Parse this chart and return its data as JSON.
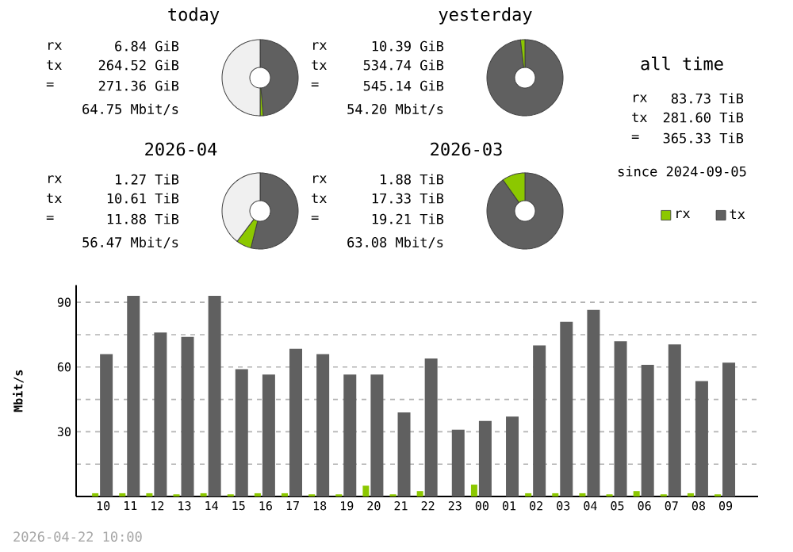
{
  "chart_data": [
    {
      "type": "donut",
      "title": "today",
      "categories": [
        null,
        null,
        null
      ],
      "values": [
        48.7,
        1.3,
        50
      ],
      "colors": [
        "#606060",
        "#8cc800",
        "#f0f0f0"
      ],
      "annotations": [
        "rx",
        "6.84 GiB",
        "tx",
        "264.52 GiB",
        "=",
        "271.36 GiB",
        "64.75 Mbit/s"
      ]
    },
    {
      "type": "donut",
      "title": "yesterday",
      "categories": [
        null,
        null
      ],
      "values": [
        98.1,
        1.9
      ],
      "colors": [
        "#606060",
        "#8cc800"
      ],
      "annotations": [
        "rx",
        "10.39 GiB",
        "tx",
        "534.74 GiB",
        "=",
        "545.14 GiB",
        "54.20 Mbit/s"
      ]
    },
    {
      "type": "other",
      "title": "all time",
      "annotations": [
        "rx",
        "83.73 TiB",
        "tx",
        "281.60 TiB",
        "=",
        "365.33 TiB",
        "since 2024-09-05"
      ]
    },
    {
      "type": "donut",
      "title": "2026-04",
      "categories": [
        null,
        null,
        null
      ],
      "values": [
        53.9,
        6.4,
        39.7
      ],
      "colors": [
        "#606060",
        "#8cc800",
        "#f0f0f0"
      ],
      "annotations": [
        "rx",
        "1.27 TiB",
        "tx",
        "10.61 TiB",
        "=",
        "11.88 TiB",
        "56.47 Mbit/s"
      ]
    },
    {
      "type": "donut",
      "title": "2026-03",
      "categories": [
        null,
        null
      ],
      "values": [
        90.2,
        9.8
      ],
      "colors": [
        "#606060",
        "#8cc800"
      ],
      "annotations": [
        "rx",
        "1.88 TiB",
        "tx",
        "17.33 TiB",
        "=",
        "19.21 TiB",
        "63.08 Mbit/s"
      ]
    },
    {
      "type": "bar",
      "ylabel": "Mbit/s",
      "categories": [
        "10",
        "11",
        "12",
        "13",
        "14",
        "15",
        "16",
        "17",
        "18",
        "19",
        "20",
        "21",
        "22",
        "23",
        "00",
        "01",
        "02",
        "03",
        "04",
        "05",
        "06",
        "07",
        "08",
        "09"
      ],
      "series": [
        {
          "name": "rx",
          "color": "#8cc800",
          "values": [
            1.5,
            1.5,
            1.5,
            1,
            1.5,
            1,
            1.5,
            1.5,
            1,
            1,
            5,
            1,
            2.5,
            0,
            5.5,
            0,
            1.5,
            1.5,
            1.5,
            1,
            2.5,
            1,
            1.5,
            1
          ]
        },
        {
          "name": "tx",
          "color": "#606060",
          "values": [
            66,
            93,
            76,
            74,
            93,
            59,
            56.5,
            68.5,
            66,
            56.5,
            56.5,
            39,
            64,
            31,
            35,
            37,
            70,
            81,
            86.5,
            72,
            61,
            70.5,
            53.5,
            62
          ]
        }
      ],
      "ylim": [
        0,
        98
      ],
      "yticks": [
        {
          "value": 15,
          "label": null
        },
        30,
        {
          "value": 45,
          "label": null
        },
        60,
        {
          "value": 75,
          "label": null
        },
        90
      ],
      "grid": "y",
      "legend": "top right",
      "annotations": [
        "2026-04-22 10:00"
      ]
    }
  ]
}
